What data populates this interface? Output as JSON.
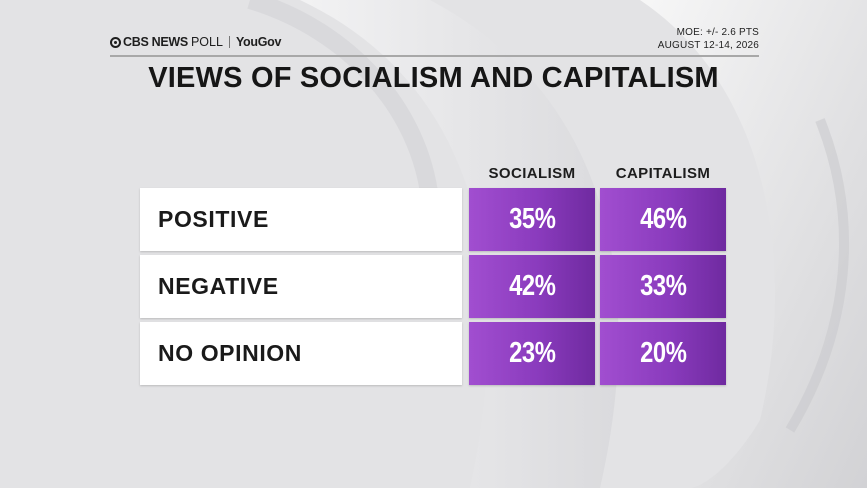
{
  "header": {
    "brand_main": "CBS NEWS",
    "brand_sub": "POLL",
    "partner": "YouGov",
    "moe": "MOE: +/- 2.6 PTS",
    "dates": "AUGUST 12-14, 2026"
  },
  "chart_data": {
    "type": "table",
    "title": "VIEWS OF SOCIALISM AND CAPITALISM",
    "columns": [
      "SOCIALISM",
      "CAPITALISM"
    ],
    "rows": [
      {
        "label": "POSITIVE",
        "values": [
          "35%",
          "46%"
        ]
      },
      {
        "label": "NEGATIVE",
        "values": [
          "42%",
          "33%"
        ]
      },
      {
        "label": "NO OPINION",
        "values": [
          "23%",
          "20%"
        ]
      }
    ],
    "cell_color": "#8a3bbd"
  }
}
